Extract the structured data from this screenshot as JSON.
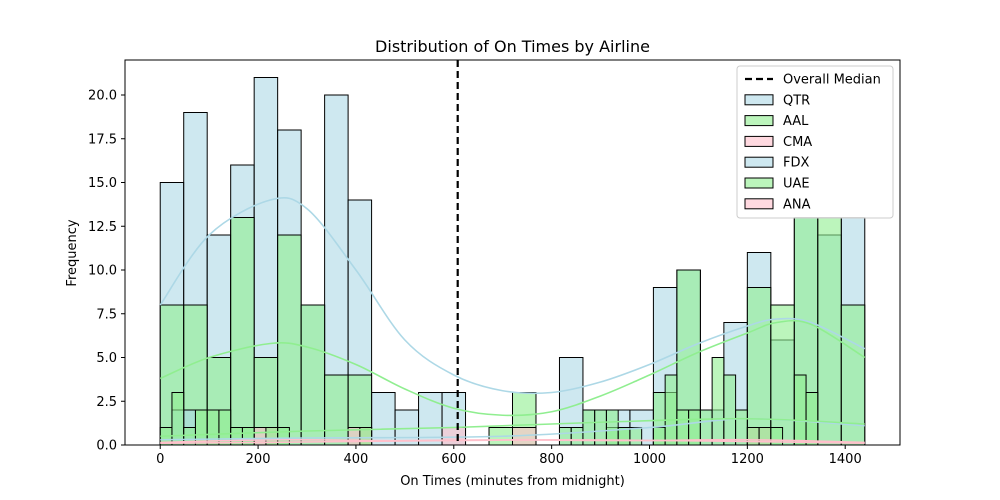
{
  "chart_data": {
    "type": "histogram",
    "title": "Distribution of On Times by Airline",
    "xlabel": "On Times (minutes from midnight)",
    "ylabel": "Frequency",
    "xlim": [
      -72,
      1512
    ],
    "ylim": [
      0,
      22
    ],
    "x_ticks": [
      0,
      200,
      400,
      600,
      800,
      1000,
      1200,
      1400
    ],
    "y_ticks": [
      0.0,
      2.5,
      5.0,
      7.5,
      10.0,
      12.5,
      15.0,
      17.5,
      20.0
    ],
    "y_tick_labels": [
      "0.0",
      "2.5",
      "5.0",
      "7.5",
      "10.0",
      "12.5",
      "15.0",
      "17.5",
      "20.0"
    ],
    "legend_position": "top-right",
    "median_line": {
      "label": "Overall Median",
      "x": 608,
      "color": "#000000",
      "style": "dashed"
    },
    "series": [
      {
        "name": "QTR",
        "color": "#add8e6",
        "bin_start": 0,
        "bin_width": 48,
        "values": [
          15,
          19,
          12,
          16,
          21,
          18,
          8,
          20,
          14,
          3,
          2,
          3,
          3,
          0,
          0,
          0,
          0,
          5,
          2,
          2,
          2,
          9,
          10,
          2,
          7,
          11,
          6,
          13,
          12,
          13
        ],
        "kde": [
          [
            0,
            8
          ],
          [
            100,
            12
          ],
          [
            225,
            14
          ],
          [
            300,
            13.5
          ],
          [
            400,
            10
          ],
          [
            500,
            6
          ],
          [
            600,
            4
          ],
          [
            700,
            3.1
          ],
          [
            800,
            3
          ],
          [
            900,
            3.6
          ],
          [
            1000,
            4.6
          ],
          [
            1100,
            5.8
          ],
          [
            1200,
            6.8
          ],
          [
            1260,
            7.2
          ],
          [
            1330,
            7
          ],
          [
            1440,
            5.5
          ]
        ]
      },
      {
        "name": "AAL",
        "color": "#90ee90",
        "bin_start": 0,
        "bin_width": 48,
        "values": [
          8,
          8,
          5,
          13,
          5,
          12,
          8,
          4,
          4,
          0,
          0,
          0,
          0,
          0,
          1,
          3,
          0,
          0,
          0,
          1,
          0,
          3,
          10,
          0,
          0,
          9,
          8,
          13,
          13,
          8
        ],
        "kde": [
          [
            0,
            3.8
          ],
          [
            100,
            5
          ],
          [
            225,
            5.8
          ],
          [
            300,
            5.6
          ],
          [
            400,
            4.6
          ],
          [
            500,
            3.2
          ],
          [
            600,
            2.1
          ],
          [
            700,
            1.7
          ],
          [
            800,
            1.9
          ],
          [
            900,
            2.8
          ],
          [
            1000,
            4
          ],
          [
            1100,
            5.3
          ],
          [
            1200,
            6.4
          ],
          [
            1260,
            7
          ],
          [
            1330,
            6.9
          ],
          [
            1440,
            5
          ]
        ]
      },
      {
        "name": "CMA",
        "color": "#ffc0cb",
        "bin_start": 0,
        "bin_width": 48,
        "values": [
          0,
          0,
          0,
          0,
          1,
          0,
          0,
          0,
          1,
          0,
          0,
          0,
          1,
          0,
          0,
          1,
          0,
          0,
          0,
          0,
          0,
          0,
          0,
          0,
          0,
          1,
          0,
          0,
          0,
          0
        ],
        "kde": [
          [
            0,
            0.15
          ],
          [
            240,
            0.3
          ],
          [
            480,
            0.25
          ],
          [
            700,
            0.3
          ],
          [
            950,
            0.25
          ],
          [
            1200,
            0.3
          ],
          [
            1440,
            0.15
          ]
        ]
      },
      {
        "name": "FDX",
        "color": "#add8e6",
        "bin_start": 0,
        "bin_width": 24,
        "values": [
          0,
          2,
          2,
          0,
          0,
          0,
          0,
          0,
          0,
          0,
          0,
          0,
          0,
          0,
          0,
          0,
          0,
          0,
          0,
          0,
          0,
          0,
          0,
          0,
          0,
          0,
          0,
          0,
          0,
          0,
          0,
          0,
          0,
          0,
          0,
          0,
          0,
          0,
          0,
          0,
          0,
          0,
          0,
          0,
          0,
          0,
          0,
          0,
          0,
          0,
          0,
          0,
          0,
          0,
          0,
          0,
          0,
          0,
          0,
          0
        ],
        "kde": [
          [
            0,
            0.3
          ],
          [
            300,
            0.4
          ],
          [
            700,
            0.5
          ],
          [
            1000,
            1
          ],
          [
            1200,
            1.5
          ],
          [
            1440,
            1.1
          ]
        ]
      },
      {
        "name": "UAE",
        "color": "#90ee90",
        "bin_start": 0,
        "bin_width": 24,
        "values": [
          1,
          3,
          1,
          2,
          2,
          2,
          1,
          1,
          0,
          1,
          1,
          0,
          0,
          0,
          0,
          0,
          0,
          1,
          0,
          0,
          0,
          0,
          0,
          0,
          0,
          0,
          0,
          0,
          0,
          0,
          0,
          0,
          0,
          0,
          1,
          1,
          2,
          2,
          2,
          1,
          1,
          0,
          1,
          4,
          2,
          2,
          2,
          5,
          4,
          2,
          1,
          1,
          1,
          0,
          4,
          3,
          0,
          0,
          0,
          0
        ],
        "kde": [
          [
            0,
            0.5
          ],
          [
            300,
            0.8
          ],
          [
            600,
            1
          ],
          [
            900,
            1.3
          ],
          [
            1200,
            1.5
          ],
          [
            1440,
            1.2
          ]
        ]
      },
      {
        "name": "ANA",
        "color": "#ffc0cb",
        "bin_start": 0,
        "bin_width": 24,
        "values": [
          0,
          0,
          0,
          0,
          0,
          0,
          0,
          0,
          0,
          0,
          0,
          0,
          0,
          0,
          0,
          0,
          0,
          0,
          0,
          0,
          0,
          0,
          0,
          0,
          0,
          0,
          0,
          0,
          0,
          0,
          0,
          0,
          0,
          0,
          0,
          0,
          0,
          0,
          0,
          0,
          0,
          0,
          0,
          0,
          0,
          0,
          0,
          0,
          0,
          0,
          0,
          0,
          0,
          0,
          0,
          0,
          0,
          0,
          0,
          0
        ],
        "kde": [
          [
            0,
            0.1
          ],
          [
            400,
            0.2
          ],
          [
            800,
            0.3
          ],
          [
            1200,
            0.2
          ],
          [
            1440,
            0.1
          ]
        ]
      }
    ]
  }
}
